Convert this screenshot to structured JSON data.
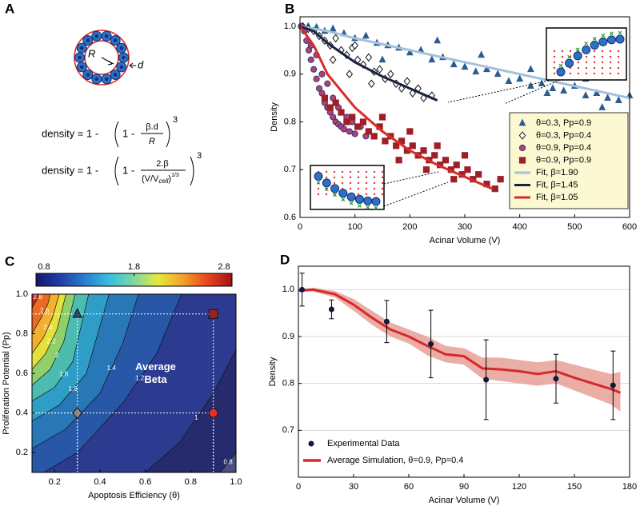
{
  "panel_a": {
    "label": "A",
    "r_label": "R",
    "d_label": "d",
    "formula_1": {
      "lhs": "density = 1 -",
      "open": "1 -",
      "numerator": "β.d",
      "denominator": "R",
      "exponent": "3"
    },
    "formula_2": {
      "lhs": "density = 1 -",
      "open": "1 -",
      "numerator": "2.β",
      "denominator": "(V/V",
      "subscript": "cell",
      "denominator_end": ")",
      "denominator_exponent": "1/3",
      "exponent": "3"
    }
  },
  "chart_data": [
    {
      "type": "scatter",
      "label": "B",
      "xlabel": "Acinar Volume (V)",
      "ylabel": "Density",
      "xlim": [
        0,
        600
      ],
      "ylim": [
        0.6,
        1.02
      ],
      "xticks": [
        0,
        100,
        200,
        300,
        400,
        500,
        600
      ],
      "yticks": [
        0.6,
        0.7,
        0.8,
        0.9,
        {
          "value": 1,
          "label": "1.0"
        }
      ],
      "legend": "lower right",
      "series": [
        {
          "name": "θ=0.3, Pp=0.9",
          "marker": "triangle",
          "color": "#2b5d8e",
          "edge": "#2b5d8e",
          "x": [
            5,
            15,
            30,
            45,
            60,
            80,
            100,
            120,
            140,
            160,
            180,
            200,
            220,
            240,
            260,
            280,
            300,
            320,
            340,
            360,
            380,
            400,
            420,
            440,
            460,
            480,
            500,
            520,
            540,
            560,
            580,
            600,
            250,
            330,
            420,
            520,
            150,
            450,
            550
          ],
          "values": [
            1,
            1,
            0.998,
            0.99,
            0.995,
            0.985,
            0.975,
            0.98,
            0.965,
            0.96,
            0.955,
            0.945,
            0.95,
            0.93,
            0.935,
            0.92,
            0.915,
            0.905,
            0.91,
            0.9,
            0.885,
            0.89,
            0.875,
            0.88,
            0.87,
            0.865,
            0.875,
            0.855,
            0.86,
            0.85,
            0.845,
            0.855,
            0.97,
            0.94,
            0.91,
            0.89,
            0.93,
            0.86,
            0.83
          ]
        },
        {
          "name": "θ=0.3, Pp=0.4",
          "marker": "diamond",
          "color": "#ffffff",
          "edge": "#111111",
          "x": [
            5,
            15,
            25,
            35,
            45,
            55,
            65,
            75,
            85,
            95,
            105,
            115,
            125,
            135,
            145,
            155,
            165,
            175,
            185,
            195,
            205,
            215,
            225,
            240,
            60,
            90,
            130,
            100
          ],
          "values": [
            1,
            0.995,
            0.99,
            0.98,
            0.97,
            0.96,
            0.975,
            0.95,
            0.94,
            0.955,
            0.93,
            0.92,
            0.935,
            0.905,
            0.91,
            0.89,
            0.9,
            0.88,
            0.87,
            0.885,
            0.86,
            0.87,
            0.85,
            0.855,
            0.93,
            0.9,
            0.88,
            0.96
          ]
        },
        {
          "name": "θ=0.9, Pp=0.4",
          "marker": "circle",
          "color": "#b8406e",
          "edge": "#2b3a80",
          "x": [
            2,
            8,
            12,
            16,
            20,
            25,
            30,
            35,
            40,
            45,
            50,
            55,
            60,
            65,
            70,
            75,
            80,
            90,
            100,
            110,
            120,
            20,
            30,
            40,
            50,
            60,
            70,
            85,
            95
          ],
          "values": [
            1,
            0.99,
            0.97,
            0.95,
            0.93,
            0.91,
            0.89,
            0.87,
            0.86,
            0.84,
            0.83,
            0.82,
            0.81,
            0.8,
            0.795,
            0.79,
            0.785,
            0.78,
            0.775,
            0.79,
            0.77,
            0.96,
            0.94,
            0.9,
            0.88,
            0.85,
            0.83,
            0.81,
            0.8
          ]
        },
        {
          "name": "θ=0.9, Pp=0.9",
          "marker": "square",
          "color": "#9e1f26",
          "edge": "#9e1f26",
          "x": [
            45,
            55,
            65,
            75,
            85,
            95,
            105,
            115,
            125,
            135,
            145,
            155,
            165,
            175,
            185,
            195,
            205,
            215,
            225,
            235,
            245,
            255,
            265,
            275,
            285,
            295,
            305,
            315,
            325,
            340,
            355,
            365,
            150,
            200,
            250,
            300,
            180,
            230,
            280
          ],
          "values": [
            0.85,
            0.83,
            0.84,
            0.82,
            0.8,
            0.81,
            0.79,
            0.8,
            0.78,
            0.77,
            0.79,
            0.76,
            0.77,
            0.75,
            0.76,
            0.74,
            0.75,
            0.73,
            0.74,
            0.72,
            0.73,
            0.71,
            0.72,
            0.7,
            0.71,
            0.69,
            0.7,
            0.68,
            0.69,
            0.67,
            0.66,
            0.68,
            0.81,
            0.78,
            0.75,
            0.73,
            0.72,
            0.7,
            0.68
          ]
        },
        {
          "name": "Fit, β=1.90",
          "marker": "line",
          "color": "#a3c0dc",
          "x": [
            0,
            50,
            100,
            200,
            300,
            400,
            500,
            600
          ],
          "values": [
            1,
            0.99,
            0.975,
            0.95,
            0.925,
            0.9,
            0.875,
            0.85
          ]
        },
        {
          "name": "Fit, β=1.45",
          "marker": "line",
          "color": "#16223f",
          "x": [
            0,
            25,
            50,
            100,
            150,
            200,
            250
          ],
          "values": [
            1,
            0.99,
            0.965,
            0.925,
            0.895,
            0.87,
            0.845
          ]
        },
        {
          "name": "Fit, β=1.05",
          "marker": "line",
          "color": "#d92a2a",
          "x": [
            0,
            25,
            50,
            100,
            150,
            200,
            250,
            300,
            350
          ],
          "values": [
            1,
            0.96,
            0.9,
            0.83,
            0.78,
            0.74,
            0.71,
            0.685,
            0.66
          ]
        }
      ]
    },
    {
      "type": "contour",
      "label": "C",
      "xlabel": "Apoptosis Efficiency (θ)",
      "ylabel": "Proliferation Potential (Pp)",
      "xlim": [
        0.1,
        1
      ],
      "ylim": [
        0.1,
        1
      ],
      "xticks": [
        0.2,
        0.4,
        0.6,
        0.8,
        {
          "value": 1,
          "label": "1.0"
        }
      ],
      "yticks": [
        0.2,
        0.4,
        0.6,
        0.8,
        {
          "value": 1,
          "label": "1.0"
        }
      ],
      "annotation": [
        "Average",
        "Beta"
      ],
      "base_color": "#4b4f85",
      "colorbar": {
        "range": [
          0.8,
          2.8
        ],
        "ticks": [
          0.8,
          1.8,
          2.8
        ],
        "colors": [
          "#14186e",
          "#1f3fa8",
          "#2a7fd0",
          "#38c0e0",
          "#7fd8a0",
          "#e8e83a",
          "#f4a028",
          "#e8461e",
          "#a01414"
        ]
      },
      "contours": [
        {
          "level": 0.8,
          "color": "#262b6d",
          "x": [
            0.93,
            1
          ],
          "y": [
            0.1,
            0.2
          ]
        },
        {
          "level": 1,
          "color": "#2c3b8f",
          "x": [
            0.6,
            0.75,
            0.9,
            1
          ],
          "y": [
            0.1,
            0.25,
            0.5,
            0.72
          ]
        },
        {
          "level": 1.2,
          "color": "#2857a8",
          "x": [
            0.15,
            0.3,
            0.5,
            0.65,
            0.76
          ],
          "y": [
            0.1,
            0.2,
            0.45,
            0.7,
            1
          ]
        },
        {
          "level": 1.4,
          "color": "#2878b8",
          "x": [
            0.1,
            0.25,
            0.4,
            0.5,
            0.57
          ],
          "y": [
            0.22,
            0.32,
            0.5,
            0.75,
            1
          ]
        },
        {
          "level": 1.6,
          "color": "#2f9ec6",
          "x": [
            0.1,
            0.22,
            0.34,
            0.44
          ],
          "y": [
            0.36,
            0.44,
            0.6,
            1
          ]
        },
        {
          "level": 1.8,
          "color": "#4dbcb0",
          "x": [
            0.1,
            0.2,
            0.28,
            0.35
          ],
          "y": [
            0.46,
            0.53,
            0.66,
            1
          ]
        },
        {
          "level": 2,
          "color": "#8fd06a",
          "x": [
            0.1,
            0.18,
            0.24,
            0.29
          ],
          "y": [
            0.54,
            0.62,
            0.76,
            1
          ]
        },
        {
          "level": 2.2,
          "color": "#e4e03c",
          "x": [
            0.1,
            0.16,
            0.21,
            0.25
          ],
          "y": [
            0.62,
            0.7,
            0.82,
            1
          ]
        },
        {
          "level": 2.4,
          "color": "#f3b02e",
          "x": [
            0.1,
            0.15,
            0.19,
            0.22
          ],
          "y": [
            0.7,
            0.78,
            0.88,
            1
          ]
        },
        {
          "level": 2.6,
          "color": "#ec6a24",
          "x": [
            0.1,
            0.14,
            0.17,
            0.18
          ],
          "y": [
            0.8,
            0.88,
            0.95,
            1
          ]
        },
        {
          "level": 2.8,
          "color": "#cc2a1c",
          "x": [
            0.1,
            0.12,
            0.13
          ],
          "y": [
            0.93,
            0.97,
            1
          ]
        }
      ],
      "points": [
        {
          "x": 0.3,
          "y": 0.9,
          "marker": "triangle",
          "color": "#2b4a7a"
        },
        {
          "x": 0.3,
          "y": 0.4,
          "marker": "diamond",
          "color": "#8a8a8a"
        },
        {
          "x": 0.9,
          "y": 0.9,
          "marker": "square",
          "color": "#9e1f26"
        },
        {
          "x": 0.9,
          "y": 0.4,
          "marker": "circle",
          "color": "#e03030"
        }
      ]
    },
    {
      "type": "line",
      "label": "D",
      "xlabel": "Acinar Volume (V)",
      "ylabel": "Density",
      "xlim": [
        0,
        180
      ],
      "ylim": [
        0.6,
        1.05
      ],
      "xticks": [
        0,
        30,
        60,
        90,
        120,
        150,
        180
      ],
      "yticks": [
        0.7,
        0.8,
        0.9,
        {
          "value": 1,
          "label": "1.0"
        }
      ],
      "grid": true,
      "legend": "lower left",
      "series": [
        {
          "name": "Experimental Data",
          "style": "errorbar",
          "color": "#14183a",
          "x": [
            2,
            18,
            48,
            72,
            102,
            140,
            171
          ],
          "values": [
            1,
            0.958,
            0.932,
            0.884,
            0.808,
            0.81,
            0.796
          ],
          "errors": [
            0.035,
            0.02,
            0.045,
            0.072,
            0.085,
            0.052,
            0.073
          ]
        },
        {
          "name": "Average Simulation, θ=0.9, Pp=0.4",
          "style": "band",
          "color": "#d42a2a",
          "band_color": "#e8a098",
          "x": [
            0,
            8,
            20,
            30,
            40,
            50,
            60,
            70,
            80,
            90,
            100,
            110,
            120,
            130,
            140,
            150,
            160,
            170,
            175
          ],
          "values": [
            0.998,
            1,
            0.99,
            0.968,
            0.94,
            0.915,
            0.9,
            0.88,
            0.862,
            0.858,
            0.832,
            0.83,
            0.826,
            0.82,
            0.826,
            0.812,
            0.8,
            0.788,
            0.78
          ],
          "lower": [
            0.995,
            0.996,
            0.983,
            0.955,
            0.925,
            0.9,
            0.885,
            0.86,
            0.845,
            0.84,
            0.81,
            0.805,
            0.8,
            0.795,
            0.8,
            0.785,
            0.77,
            0.755,
            0.74
          ],
          "upper": [
            1,
            1.004,
            0.997,
            0.98,
            0.955,
            0.93,
            0.915,
            0.9,
            0.88,
            0.875,
            0.855,
            0.855,
            0.85,
            0.845,
            0.85,
            0.84,
            0.83,
            0.82,
            0.825
          ]
        }
      ]
    }
  ]
}
